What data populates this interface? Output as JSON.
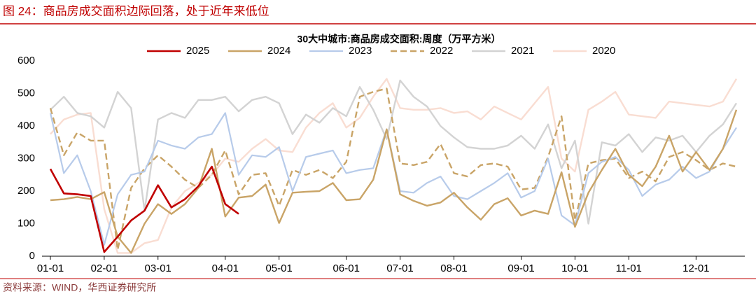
{
  "header": {
    "title": "图 24：商品房成交面积边际回落，处于近年来低位"
  },
  "footer": {
    "source": "资料来源：WIND，华西证券研究所"
  },
  "chart_data": {
    "type": "line",
    "title": "30大中城市:商品房成交面积:周度（万平方米）",
    "categories": [
      "01-01",
      null,
      null,
      null,
      "02-01",
      null,
      null,
      null,
      "03-01",
      null,
      null,
      null,
      null,
      "04-01",
      null,
      null,
      null,
      "05-01",
      null,
      null,
      null,
      null,
      "06-01",
      null,
      null,
      null,
      "07-01",
      null,
      null,
      null,
      "08-01",
      null,
      null,
      null,
      null,
      "09-01",
      null,
      null,
      null,
      "10-01",
      null,
      null,
      null,
      "11-01",
      null,
      null,
      null,
      null,
      "12-01",
      null,
      null,
      null
    ],
    "ylim": [
      0,
      600
    ],
    "yticks": [
      0,
      100,
      200,
      300,
      400,
      500,
      600
    ],
    "grid": false,
    "series": [
      {
        "name": "2025",
        "color": "#c00000",
        "width": 2.6,
        "values": [
          268,
          193,
          190,
          185,
          13,
          60,
          110,
          140,
          218,
          150,
          175,
          215,
          275,
          160,
          130,
          null,
          null,
          null,
          null,
          null,
          null,
          null,
          null,
          null,
          null,
          null,
          null,
          null,
          null,
          null,
          null,
          null,
          null,
          null,
          null,
          null,
          null,
          null,
          null,
          null,
          null,
          null,
          null,
          null,
          null,
          null,
          null,
          null,
          null,
          null,
          null,
          null
        ]
      },
      {
        "name": "2024",
        "color": "#c9a467",
        "width": 2.4,
        "values": [
          172,
          175,
          182,
          175,
          197,
          60,
          10,
          100,
          160,
          130,
          160,
          210,
          330,
          122,
          180,
          185,
          220,
          102,
          195,
          198,
          200,
          225,
          172,
          175,
          235,
          390,
          190,
          170,
          155,
          165,
          195,
          150,
          112,
          160,
          178,
          125,
          140,
          130,
          258,
          90,
          195,
          265,
          330,
          250,
          215,
          275,
          370,
          260,
          320,
          265,
          330,
          450
        ]
      },
      {
        "name": "2023",
        "color": "#b7cbea",
        "width": 2.2,
        "values": [
          440,
          255,
          310,
          200,
          35,
          190,
          250,
          260,
          355,
          340,
          330,
          365,
          375,
          440,
          250,
          310,
          305,
          335,
          200,
          305,
          315,
          325,
          255,
          265,
          270,
          390,
          200,
          195,
          225,
          245,
          185,
          175,
          200,
          225,
          255,
          180,
          200,
          300,
          125,
          95,
          255,
          290,
          305,
          265,
          185,
          220,
          235,
          275,
          240,
          260,
          330,
          395
        ]
      },
      {
        "name": "2022",
        "color": "#c9a467",
        "width": 2.4,
        "line_style": "dashed",
        "values": [
          455,
          310,
          380,
          355,
          355,
          20,
          210,
          270,
          310,
          275,
          235,
          210,
          250,
          325,
          190,
          250,
          255,
          155,
          265,
          250,
          265,
          240,
          290,
          490,
          505,
          515,
          285,
          280,
          290,
          345,
          255,
          245,
          280,
          285,
          275,
          205,
          210,
          305,
          430,
          110,
          285,
          295,
          300,
          240,
          260,
          230,
          305,
          320,
          295,
          265,
          285,
          275
        ]
      },
      {
        "name": "2021",
        "color": "#d3d3d3",
        "width": 2.4,
        "values": [
          450,
          490,
          440,
          430,
          395,
          505,
          455,
          140,
          420,
          440,
          425,
          480,
          480,
          490,
          445,
          480,
          490,
          470,
          375,
          435,
          410,
          455,
          430,
          520,
          450,
          360,
          540,
          490,
          460,
          400,
          365,
          335,
          330,
          330,
          340,
          370,
          330,
          405,
          270,
          355,
          100,
          350,
          340,
          375,
          320,
          365,
          355,
          370,
          320,
          370,
          405,
          470
        ]
      },
      {
        "name": "2020",
        "color": "#f9ddd2",
        "width": 2.4,
        "values": [
          375,
          420,
          435,
          440,
          145,
          10,
          10,
          40,
          50,
          150,
          200,
          225,
          250,
          300,
          290,
          330,
          360,
          325,
          320,
          395,
          440,
          470,
          395,
          425,
          490,
          545,
          455,
          450,
          450,
          455,
          440,
          445,
          420,
          460,
          440,
          420,
          470,
          520,
          300,
          260,
          450,
          475,
          505,
          435,
          430,
          425,
          475,
          470,
          465,
          460,
          475,
          545
        ]
      }
    ]
  }
}
